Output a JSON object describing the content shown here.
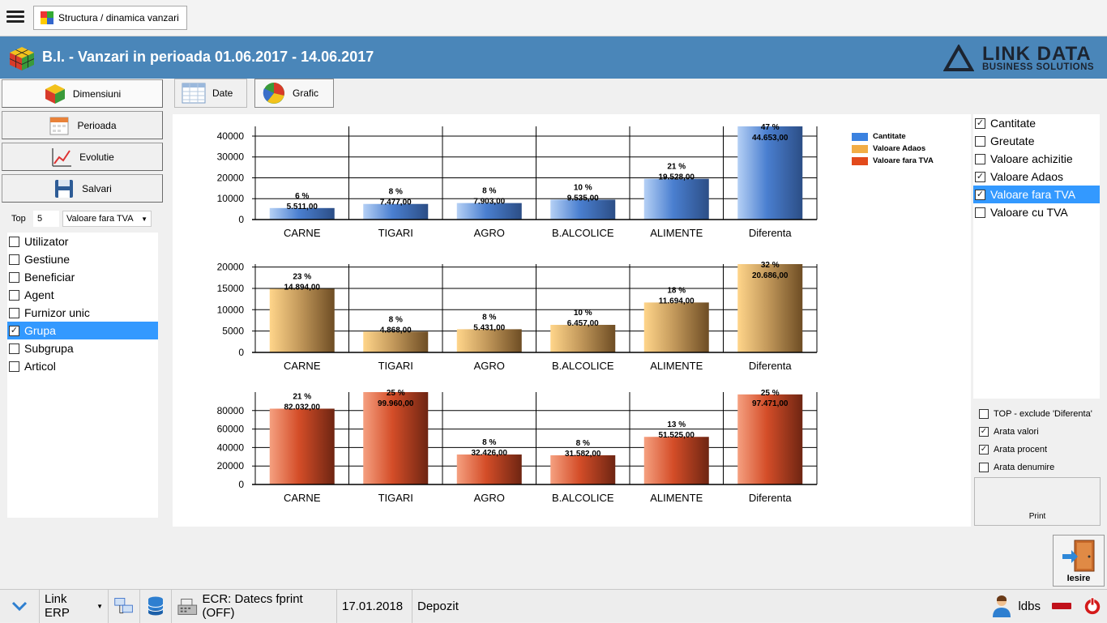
{
  "window_tab": {
    "label": "Structura / dinamica vanzari"
  },
  "header": {
    "title": "B.I. - Vanzari in perioada 01.06.2017 - 14.06.2017",
    "logo_line1": "LINK DATA",
    "logo_line2": "BUSINESS SOLUTIONS"
  },
  "left_nav": {
    "buttons": [
      {
        "label": "Dimensiuni",
        "icon": "rubik-cube-icon"
      },
      {
        "label": "Perioada",
        "icon": "calendar-icon"
      },
      {
        "label": "Evolutie",
        "icon": "line-chart-icon"
      },
      {
        "label": "Salvari",
        "icon": "floppy-disk-icon"
      }
    ],
    "top_label": "Top",
    "top_value": "5",
    "top_measure": "Valoare fara TVA"
  },
  "dimensions": [
    {
      "label": "Utilizator",
      "checked": false,
      "selected": false
    },
    {
      "label": "Gestiune",
      "checked": false,
      "selected": false
    },
    {
      "label": "Beneficiar",
      "checked": false,
      "selected": false
    },
    {
      "label": "Agent",
      "checked": false,
      "selected": false
    },
    {
      "label": "Furnizor unic",
      "checked": false,
      "selected": false
    },
    {
      "label": "Grupa",
      "checked": true,
      "selected": true
    },
    {
      "label": "Subgrupa",
      "checked": false,
      "selected": false
    },
    {
      "label": "Articol",
      "checked": false,
      "selected": false
    }
  ],
  "view_tabs": [
    {
      "label": "Date",
      "icon": "table-grid-icon"
    },
    {
      "label": "Grafic",
      "icon": "pie-chart-icon"
    }
  ],
  "chart_data": [
    {
      "type": "bar",
      "categories": [
        "CARNE",
        "TIGARI",
        "AGRO",
        "B.ALCOLICE",
        "ALIMENTE",
        "Diferenta"
      ],
      "series": [
        {
          "name": "Cantitate",
          "values": [
            5511,
            7477,
            7903,
            9535,
            19528,
            44653
          ]
        }
      ],
      "value_labels": [
        "5.511,00",
        "7.477,00",
        "7.903,00",
        "9.535,00",
        "19.528,00",
        "44.653,00"
      ],
      "percent_labels": [
        "6 %",
        "8 %",
        "8 %",
        "10 %",
        "21 %",
        "47 %"
      ],
      "yticks": [
        "0",
        "10000",
        "20000",
        "30000",
        "40000"
      ],
      "ylim": [
        0,
        44653
      ],
      "grid": true,
      "colors": [
        "#b5d0f5",
        "#4a7fd0",
        "#2c4e86"
      ]
    },
    {
      "type": "bar",
      "categories": [
        "CARNE",
        "TIGARI",
        "AGRO",
        "B.ALCOLICE",
        "ALIMENTE",
        "Diferenta"
      ],
      "series": [
        {
          "name": "Valoare Adaos",
          "values": [
            14894,
            4868,
            5431,
            6457,
            11694,
            20686
          ]
        }
      ],
      "value_labels": [
        "14.894,00",
        "4.868,00",
        "5.431,00",
        "6.457,00",
        "11.694,00",
        "20.686,00"
      ],
      "percent_labels": [
        "23 %",
        "8 %",
        "8 %",
        "10 %",
        "18 %",
        "32 %"
      ],
      "yticks": [
        "0",
        "5000",
        "10000",
        "15000",
        "20000"
      ],
      "ylim": [
        0,
        20686
      ],
      "grid": true,
      "colors": [
        "#ffd58a",
        "#c49a5c",
        "#6e4d24"
      ]
    },
    {
      "type": "bar",
      "categories": [
        "CARNE",
        "TIGARI",
        "AGRO",
        "B.ALCOLICE",
        "ALIMENTE",
        "Diferenta"
      ],
      "series": [
        {
          "name": "Valoare fara TVA",
          "values": [
            82032,
            99960,
            32426,
            31582,
            51525,
            97471
          ]
        }
      ],
      "value_labels": [
        "82.032,00",
        "99.960,00",
        "32.426,00",
        "31.582,00",
        "51.525,00",
        "97.471,00"
      ],
      "percent_labels": [
        "21 %",
        "25 %",
        "8 %",
        "8 %",
        "13 %",
        "25 %"
      ],
      "yticks": [
        "0",
        "20000",
        "40000",
        "60000",
        "80000"
      ],
      "ylim": [
        0,
        99960
      ],
      "grid": true,
      "colors": [
        "#f5a080",
        "#d44d28",
        "#6e2512"
      ]
    }
  ],
  "legend": [
    {
      "label": "Cantitate",
      "color": "#3b82e0"
    },
    {
      "label": "Valoare Adaos",
      "color": "#f2ad45"
    },
    {
      "label": "Valoare fara TVA",
      "color": "#e24a1c"
    }
  ],
  "measures": [
    {
      "label": "Cantitate",
      "checked": true,
      "selected": false
    },
    {
      "label": "Greutate",
      "checked": false,
      "selected": false
    },
    {
      "label": "Valoare achizitie",
      "checked": false,
      "selected": false
    },
    {
      "label": "Valoare Adaos",
      "checked": true,
      "selected": false
    },
    {
      "label": "Valoare fara TVA",
      "checked": true,
      "selected": true
    },
    {
      "label": "Valoare cu TVA",
      "checked": false,
      "selected": false
    }
  ],
  "options": [
    {
      "label": "TOP - exclude 'Diferenta'",
      "checked": false
    },
    {
      "label": "Arata valori",
      "checked": true
    },
    {
      "label": "Arata procent",
      "checked": true
    },
    {
      "label": "Arata denumire",
      "checked": false
    }
  ],
  "print_label": "Print",
  "exit_label": "Iesire",
  "status": {
    "app": "Link ERP",
    "ecr": "ECR: Datecs fprint (OFF)",
    "date": "17.01.2018",
    "location": "Depozit",
    "user": "ldbs"
  }
}
